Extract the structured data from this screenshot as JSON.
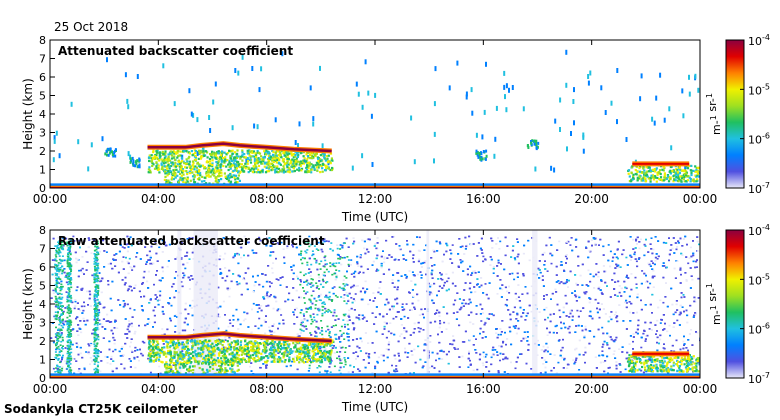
{
  "date_label": "25 Oct 2018",
  "footer_label": "Sodankyla CT25K ceilometer",
  "colorbar": {
    "ticks": [
      "10-7",
      "10-6",
      "10-5",
      "10-4"
    ],
    "unit_label": "m-1 sr-1",
    "colors": [
      "#e8e8f8",
      "#5050e0",
      "#0080ff",
      "#20c0e0",
      "#20c060",
      "#a0e020",
      "#f0f000",
      "#ff8000",
      "#e00000",
      "#8b0040"
    ]
  },
  "chart_data": [
    {
      "type": "heatmap",
      "title": "Attenuated backscatter coefficient",
      "xlabel": "Time (UTC)",
      "ylabel": "Height (km)",
      "xlim": [
        0,
        24
      ],
      "ylim": [
        0,
        8
      ],
      "xticks": [
        "00:00",
        "04:00",
        "08:00",
        "12:00",
        "16:00",
        "20:00",
        "00:00"
      ],
      "yticks": [
        "0",
        "1",
        "2",
        "3",
        "4",
        "5",
        "6",
        "7",
        "8"
      ],
      "color_scale": "log",
      "clim": [
        1e-07,
        0.0001
      ],
      "grid": false,
      "features": {
        "cloud_layer": [
          {
            "t": 3.6,
            "h": 2.2
          },
          {
            "t": 5.0,
            "h": 2.2
          },
          {
            "t": 5.6,
            "h": 2.3
          },
          {
            "t": 6.4,
            "h": 2.4
          },
          {
            "t": 7.0,
            "h": 2.3
          },
          {
            "t": 8.0,
            "h": 2.2
          },
          {
            "t": 9.0,
            "h": 2.1
          },
          {
            "t": 10.4,
            "h": 2.0
          }
        ],
        "late_layer": [
          {
            "t": 21.5,
            "h": 1.3
          },
          {
            "t": 22.5,
            "h": 1.3
          },
          {
            "t": 23.6,
            "h": 1.3
          }
        ]
      }
    },
    {
      "type": "heatmap",
      "title": "Raw attenuated backscatter coefficient",
      "xlabel": "Time (UTC)",
      "ylabel": "Height (km)",
      "xlim": [
        0,
        24
      ],
      "ylim": [
        0,
        8
      ],
      "xticks": [
        "00:00",
        "04:00",
        "08:00",
        "12:00",
        "16:00",
        "20:00",
        "00:00"
      ],
      "yticks": [
        "0",
        "1",
        "2",
        "3",
        "4",
        "5",
        "6",
        "7",
        "8"
      ],
      "color_scale": "log",
      "clim": [
        1e-07,
        0.0001
      ],
      "grid": false,
      "features": {
        "cloud_layer": [
          {
            "t": 3.6,
            "h": 2.2
          },
          {
            "t": 5.0,
            "h": 2.2
          },
          {
            "t": 5.6,
            "h": 2.3
          },
          {
            "t": 6.4,
            "h": 2.4
          },
          {
            "t": 7.0,
            "h": 2.3
          },
          {
            "t": 8.0,
            "h": 2.2
          },
          {
            "t": 9.0,
            "h": 2.1
          },
          {
            "t": 10.4,
            "h": 2.0
          }
        ],
        "late_layer": [
          {
            "t": 21.5,
            "h": 1.3
          },
          {
            "t": 22.5,
            "h": 1.3
          },
          {
            "t": 23.6,
            "h": 1.3
          }
        ]
      }
    }
  ]
}
